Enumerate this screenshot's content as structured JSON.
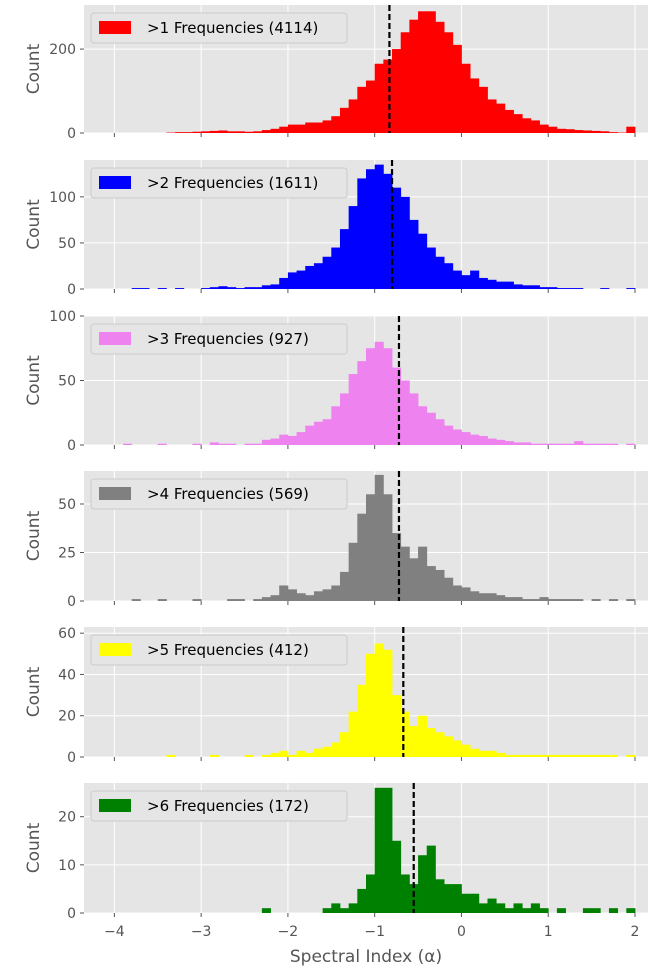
{
  "figure": {
    "xlabel": "Spectral Index (α)",
    "ylabel": "Count"
  },
  "chart_data": [
    {
      "type": "histogram",
      "legend": ">1 Frequencies (4114)",
      "color": "#ff0000",
      "bin_start": -4.0,
      "bin_width": 0.1,
      "counts": [
        0,
        0,
        0,
        0,
        0,
        0,
        1,
        2,
        2,
        3,
        4,
        5,
        6,
        4,
        4,
        3,
        4,
        7,
        10,
        15,
        20,
        20,
        25,
        25,
        30,
        40,
        60,
        80,
        110,
        125,
        165,
        175,
        200,
        240,
        270,
        290,
        290,
        265,
        240,
        210,
        165,
        130,
        110,
        80,
        70,
        55,
        45,
        35,
        30,
        20,
        15,
        10,
        9,
        7,
        6,
        5,
        4,
        2,
        1,
        15
      ],
      "median": -0.83,
      "xlim": [
        -4.35,
        2.15
      ],
      "ylim": [
        0,
        305
      ],
      "yticks": [
        0,
        200
      ],
      "legend_position": "upper-left"
    },
    {
      "type": "histogram",
      "legend": ">2 Frequencies (1611)",
      "color": "#0000ff",
      "bin_start": -4.0,
      "bin_width": 0.1,
      "counts": [
        0,
        0,
        1,
        1,
        0,
        1,
        0,
        1,
        0,
        0,
        1,
        2,
        3,
        2,
        1,
        2,
        2,
        4,
        5,
        12,
        18,
        20,
        25,
        28,
        35,
        45,
        65,
        90,
        120,
        130,
        135,
        125,
        110,
        100,
        75,
        60,
        45,
        35,
        28,
        20,
        15,
        20,
        12,
        10,
        8,
        8,
        5,
        4,
        4,
        2,
        2,
        1,
        1,
        1,
        0,
        0,
        1,
        0,
        0,
        1
      ],
      "median": -0.8,
      "xlim": [
        -4.35,
        2.15
      ],
      "ylim": [
        0,
        140
      ],
      "yticks": [
        0,
        50,
        100
      ],
      "legend_position": "upper-left"
    },
    {
      "type": "histogram",
      "legend": ">3 Frequencies (927)",
      "color": "#ee82ee",
      "bin_start": -4.0,
      "bin_width": 0.1,
      "counts": [
        0,
        1,
        0,
        0,
        0,
        1,
        0,
        0,
        0,
        1,
        0,
        2,
        1,
        1,
        0,
        1,
        1,
        4,
        5,
        8,
        7,
        10,
        15,
        18,
        20,
        30,
        40,
        55,
        65,
        75,
        80,
        75,
        60,
        50,
        40,
        30,
        25,
        20,
        15,
        12,
        10,
        8,
        7,
        5,
        4,
        3,
        2,
        2,
        1,
        1,
        1,
        1,
        1,
        3,
        1,
        1,
        1,
        1,
        0,
        1
      ],
      "median": -0.72,
      "xlim": [
        -4.35,
        2.15
      ],
      "ylim": [
        0,
        100
      ],
      "yticks": [
        0,
        50,
        100
      ],
      "legend_position": "upper-left"
    },
    {
      "type": "histogram",
      "legend": ">4 Frequencies (569)",
      "color": "#808080",
      "bin_start": -4.0,
      "bin_width": 0.1,
      "counts": [
        0,
        0,
        1,
        0,
        0,
        1,
        0,
        0,
        0,
        1,
        0,
        0,
        0,
        1,
        1,
        0,
        1,
        2,
        3,
        8,
        6,
        4,
        3,
        5,
        6,
        8,
        15,
        30,
        45,
        55,
        65,
        55,
        35,
        28,
        22,
        28,
        18,
        16,
        12,
        8,
        7,
        5,
        4,
        4,
        3,
        2,
        2,
        1,
        1,
        2,
        1,
        1,
        1,
        1,
        0,
        1,
        0,
        1,
        0,
        1
      ],
      "median": -0.72,
      "xlim": [
        -4.35,
        2.15
      ],
      "ylim": [
        0,
        67
      ],
      "yticks": [
        0,
        25,
        50
      ],
      "legend_position": "upper-left"
    },
    {
      "type": "histogram",
      "legend": ">5 Frequencies (412)",
      "color": "#ffff00",
      "bin_start": -4.0,
      "bin_width": 0.1,
      "counts": [
        0,
        0,
        0,
        0,
        0,
        0,
        1,
        0,
        0,
        0,
        0,
        1,
        0,
        0,
        0,
        1,
        0,
        1,
        2,
        3,
        1,
        3,
        2,
        4,
        5,
        7,
        12,
        22,
        35,
        50,
        55,
        52,
        30,
        22,
        15,
        20,
        14,
        12,
        10,
        8,
        6,
        4,
        3,
        3,
        2,
        1,
        1,
        1,
        1,
        1,
        1,
        1,
        1,
        1,
        1,
        1,
        1,
        1,
        0,
        1
      ],
      "median": -0.67,
      "xlim": [
        -4.35,
        2.15
      ],
      "ylim": [
        0,
        63
      ],
      "yticks": [
        0,
        20,
        40,
        60
      ],
      "legend_position": "upper-left"
    },
    {
      "type": "histogram",
      "legend": ">6 Frequencies (172)",
      "color": "#008000",
      "bin_start": -4.0,
      "bin_width": 0.1,
      "counts": [
        0,
        0,
        0,
        0,
        0,
        0,
        0,
        0,
        0,
        0,
        0,
        0,
        0,
        0,
        0,
        0,
        0,
        1,
        0,
        0,
        0,
        0,
        0,
        0,
        1,
        2,
        1,
        2,
        5,
        8,
        26,
        26,
        15,
        8,
        6,
        12,
        14,
        7,
        6,
        6,
        4,
        4,
        2,
        3,
        2,
        1,
        2,
        1,
        2,
        1,
        0,
        1,
        0,
        0,
        1,
        1,
        0,
        1,
        0,
        1
      ],
      "median": -0.55,
      "xlim": [
        -4.35,
        2.15
      ],
      "ylim": [
        0,
        27
      ],
      "yticks": [
        0,
        10,
        20
      ],
      "legend_position": "upper-left"
    }
  ],
  "xticks": [
    {
      "value": -4,
      "label": "−4"
    },
    {
      "value": -3,
      "label": "−3"
    },
    {
      "value": -2,
      "label": "−2"
    },
    {
      "value": -1,
      "label": "−1"
    },
    {
      "value": 0,
      "label": "0"
    },
    {
      "value": 1,
      "label": "1"
    },
    {
      "value": 2,
      "label": "2"
    }
  ]
}
